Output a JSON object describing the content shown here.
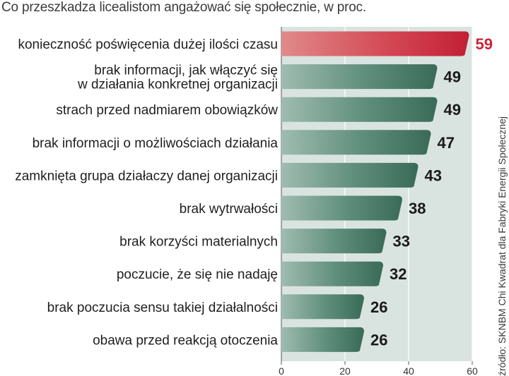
{
  "title": "Co przeszkadza licealistom angażować się społecznie, w proc.",
  "source": "źródło: SKNBM Chi Kwadrat dla Fabryki Energii Społecznej",
  "colors": {
    "highlight_bar": "#c8263a",
    "bar": "#3d6e5d",
    "plot_background": "#d9e4e0",
    "gridline": "#ffffff",
    "value_text": "#1a1a1a",
    "highlight_value_text": "#c8263a"
  },
  "chart_data": {
    "type": "bar",
    "orientation": "horizontal",
    "title": "Co przeszkadza licealistom angażować się społecznie, w proc.",
    "categories": [
      [
        "konieczność poświęcenia dużej ilości czasu"
      ],
      [
        "brak informacji, jak włączyć się",
        "w działania konkretnej organizacji"
      ],
      [
        "strach przed nadmiarem obowiązków"
      ],
      [
        "brak informacji o możliwościach działania"
      ],
      [
        "zamknięta grupa działaczy danej organizacji"
      ],
      [
        "brak wytrwałości"
      ],
      [
        "brak korzyści materialnych"
      ],
      [
        "poczucie, że się nie nadaję"
      ],
      [
        "brak poczucia sensu takiej działalności"
      ],
      [
        "obawa przed reakcją otoczenia"
      ]
    ],
    "values": [
      59,
      49,
      49,
      47,
      43,
      38,
      33,
      32,
      26,
      26
    ],
    "highlight_index": 0,
    "xlim": [
      0,
      60
    ],
    "xticks": [
      0,
      20,
      40,
      60
    ],
    "xlabel": "",
    "ylabel": "",
    "grid": true
  }
}
